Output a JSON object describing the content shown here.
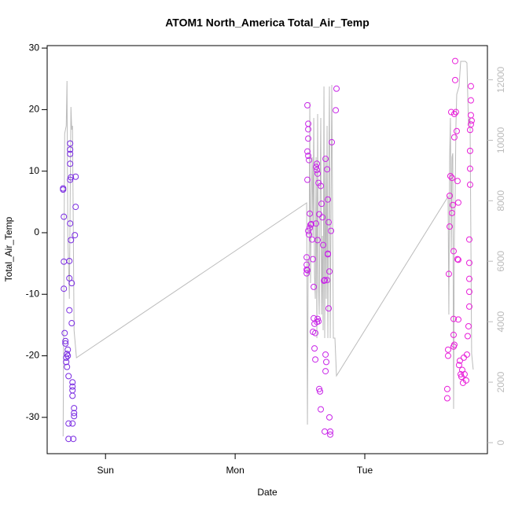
{
  "chart_data": {
    "type": "scatter",
    "title": "ATOM1 North_America Total_Air_Temp",
    "xlabel": "Date",
    "ylabel": "Total_Air_Temp",
    "xlim": [
      -10.8,
      70.7
    ],
    "xticks": [
      {
        "value": 0,
        "label": "Sun"
      },
      {
        "value": 24,
        "label": "Mon"
      },
      {
        "value": 48,
        "label": "Tue"
      }
    ],
    "ylim": [
      -35.9,
      30.4
    ],
    "yticks": [
      -30,
      -20,
      -10,
      0,
      10,
      20,
      30
    ],
    "y2lim": [
      -364,
      13130
    ],
    "y2ticks": [
      0,
      2000,
      4000,
      6000,
      8000,
      10000,
      12000
    ],
    "series": [
      {
        "color": "#bbbbbb",
        "type": "line",
        "axis": "y2",
        "x": [
          -7.85,
          -7.56,
          -7.27,
          -7.13,
          -6.98,
          -6.69,
          -6.4,
          -6.25,
          -6.11,
          -5.82,
          -5.38,
          37.24,
          37.38,
          37.53,
          37.67,
          37.82,
          37.96,
          38.11,
          38.25,
          38.4,
          38.55,
          38.69,
          38.84,
          38.98,
          39.13,
          39.27,
          39.42,
          39.56,
          39.71,
          39.85,
          40.0,
          40.15,
          40.29,
          40.44,
          40.58,
          40.73,
          40.87,
          41.02,
          41.16,
          41.31,
          41.45,
          41.6,
          41.89,
          42.18,
          42.47,
          42.76,
          63.42,
          63.56,
          63.71,
          63.85,
          64.0,
          64.15,
          64.29,
          64.44,
          64.58,
          64.73,
          64.87,
          65.02,
          65.45,
          65.75,
          66.62,
          66.91,
          67.2,
          67.49,
          67.78,
          68.07
        ],
        "values": [
          208,
          10218,
          10478,
          11960,
          6838,
          4758,
          11102,
          10348,
          10478,
          3718,
          2808,
          7930,
          598,
          6058,
          5538,
          11258,
          5278,
          8138,
          9438,
          6838,
          10738,
          5538,
          4758,
          9438,
          3458,
          10868,
          5278,
          4238,
          7878,
          10738,
          4238,
          6838,
          3718,
          11778,
          3458,
          9438,
          4758,
          10478,
          3458,
          8138,
          11778,
          3458,
          11830,
          3458,
          3458,
          2210,
          8138,
          4238,
          9438,
          10738,
          6318,
          9438,
          9568,
          1118,
          6838,
          8138,
          10478,
          11518,
          11778,
          12610,
          12610,
          12558,
          10478,
          10738,
          2938,
          2418
        ]
      },
      {
        "color": "#7a2be2",
        "x": [
          -7.85,
          -7.85,
          -7.71,
          -7.71,
          -7.71,
          -7.56,
          -7.42,
          -7.42,
          -7.27,
          -7.27,
          -7.13,
          -7.13,
          -6.98,
          -6.98,
          -6.84,
          -6.84,
          -6.84,
          -6.69,
          -6.69,
          -6.69,
          -6.55,
          -6.55,
          -6.55,
          -6.55,
          -6.55,
          -6.55,
          -6.4,
          -6.4,
          -6.25,
          -6.25,
          -6.11,
          -6.11,
          -6.11,
          -6.11,
          -6.11,
          -5.96,
          -5.82,
          -5.82,
          -5.67,
          -5.53,
          -5.53,
          -5.82
        ],
        "values": [
          7,
          7.2,
          2.6,
          -4.7,
          -9.1,
          -16.3,
          -17.6,
          -18,
          -20.3,
          -21,
          -19.7,
          -21.8,
          -19,
          -20,
          -23.3,
          -31,
          -33.5,
          -12.6,
          -7.4,
          -4.6,
          1.5,
          8.6,
          11.2,
          12.8,
          13.5,
          14.5,
          9,
          -1.2,
          -8.2,
          -14.7,
          -24.3,
          -25,
          -25.6,
          -26.5,
          -31,
          -33.5,
          -28.5,
          -29.3,
          -0.4,
          4.2,
          9.1,
          -29.8
        ]
      },
      {
        "color": "#c825e8",
        "x": [
          37.38,
          37.53,
          37.53,
          37.53,
          37.38,
          37.53,
          37.67,
          37.38,
          37.82,
          37.53,
          37.67,
          37.82,
          37.96,
          38.11,
          38.25,
          38.4,
          37.24,
          37.24,
          37.24,
          37.24,
          37.38,
          38.55,
          38.55,
          38.69,
          38.84,
          38.4,
          38.69,
          38.84,
          39.13,
          39.27,
          39.42,
          39.56,
          39.71,
          39.85,
          38.98,
          39.13,
          39.13,
          39.27,
          39.42,
          39.56,
          39.85,
          40.0,
          40.15,
          40.29,
          40.44,
          40.58,
          40.73,
          40.73,
          40.87,
          40.58,
          41.02,
          41.16,
          41.31,
          41.45,
          41.6,
          41.6,
          41.75,
          41.89,
          42.62,
          42.76,
          40.73,
          41.16,
          41.31,
          41.45,
          41.02,
          41.16,
          38.98,
          39.27
        ],
        "values": [
          20.7,
          17.7,
          16.8,
          15.3,
          13.2,
          12.5,
          11.8,
          8.6,
          3.1,
          0.3,
          -0.3,
          0.8,
          1.3,
          1.4,
          -1.1,
          -4.3,
          -4,
          -5.2,
          -6,
          -6.6,
          -6.1,
          -8.8,
          -13.9,
          -14.8,
          -16.3,
          -16.1,
          -18.8,
          -20.6,
          -14.5,
          -14,
          -14.4,
          -25.4,
          -25.8,
          -28.7,
          10.7,
          11.2,
          10.2,
          9.6,
          8.1,
          3,
          7.6,
          4.7,
          2.5,
          -2,
          -7.8,
          -7.7,
          -19.8,
          -22.5,
          -21,
          -32.3,
          -7.7,
          -3.5,
          -12.3,
          -30,
          -32.3,
          -32.8,
          0.3,
          14.7,
          19.9,
          23.4,
          12,
          5.4,
          1.7,
          -6.3,
          10.3,
          -3.4,
          1.5,
          -1.2
        ]
      },
      {
        "color": "#e81ed9",
        "x": [
          63.27,
          63.27,
          63.42,
          63.42,
          63.56,
          63.71,
          63.71,
          63.85,
          64.0,
          64.15,
          64.15,
          64.29,
          64.44,
          64.44,
          64.44,
          64.58,
          64.44,
          64.58,
          64.58,
          64.73,
          64.73,
          64.87,
          65.02,
          65.16,
          65.31,
          65.31,
          65.31,
          65.45,
          65.6,
          65.75,
          65.89,
          66.04,
          66.18,
          66.33,
          66.47,
          66.76,
          66.91,
          67.05,
          67.2,
          67.35,
          67.35,
          67.35,
          67.35,
          67.35,
          67.49,
          67.49,
          67.49,
          67.49,
          67.64,
          67.78,
          67.64,
          67.64,
          67.64,
          65.16
        ],
        "values": [
          -25.4,
          -26.9,
          -20,
          -19,
          -6.7,
          1,
          6,
          9.2,
          19.6,
          8.9,
          3.2,
          4.5,
          -14,
          -16.6,
          -18.5,
          -18.2,
          -3,
          15.5,
          19.3,
          24.8,
          27.9,
          19.6,
          16.5,
          8.4,
          4.9,
          -4.4,
          -14.1,
          -21.5,
          -20.8,
          -23,
          -23.4,
          -22.3,
          -24.4,
          -20.3,
          -23,
          -24,
          -19.8,
          -16.8,
          -15.2,
          -12,
          -9.6,
          -7.5,
          -4.9,
          -1.1,
          7.8,
          10.4,
          13.3,
          16.7,
          17.6,
          18.2,
          19.1,
          21.5,
          23.8,
          -4.3
        ]
      }
    ]
  }
}
